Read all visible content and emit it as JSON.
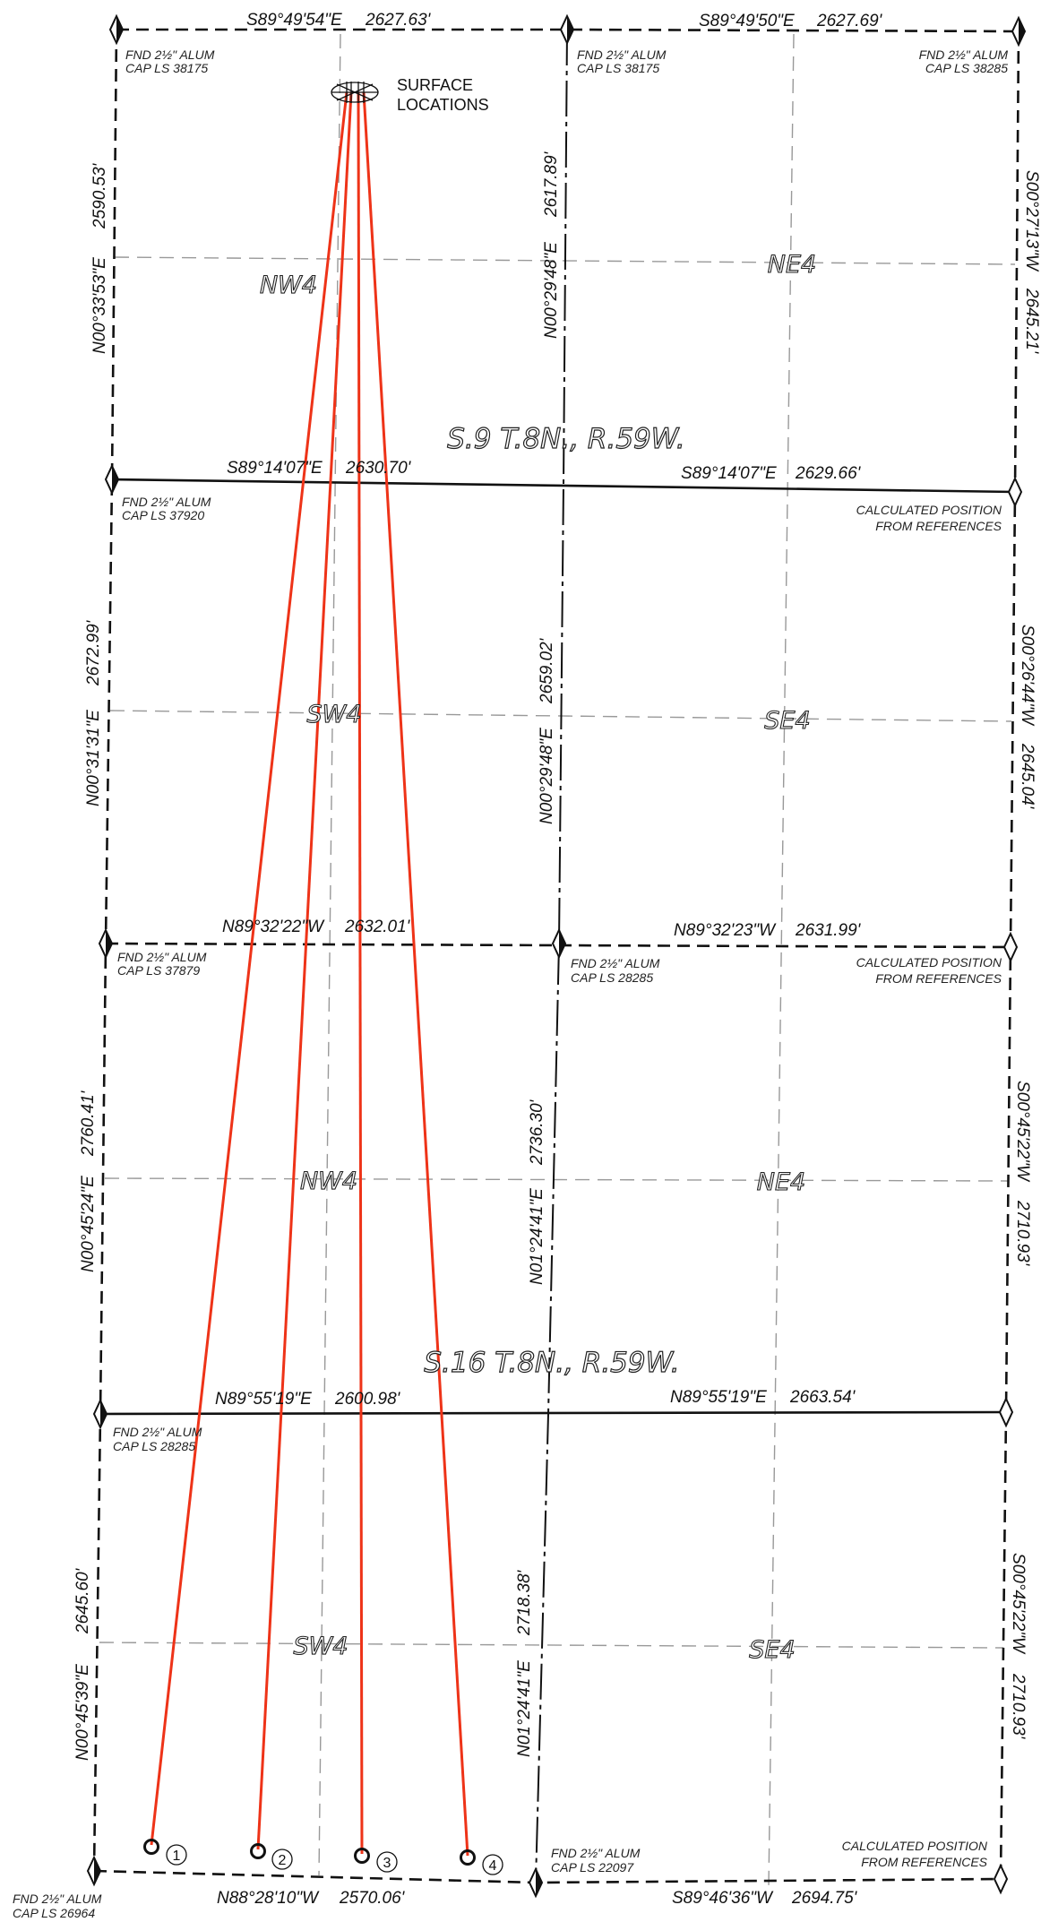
{
  "sections": [
    {
      "id": "s9",
      "label": "S.9 T.8N., R.59W."
    },
    {
      "id": "s16",
      "label": "S.16 T.8N., R.59W."
    }
  ],
  "quarters": {
    "s9_nw": "NW4",
    "s9_ne": "NE4",
    "s9_sw": "SW4",
    "s9_se": "SE4",
    "s16_nw": "NW4",
    "s16_ne": "NE4",
    "s16_sw": "SW4",
    "s16_se": "SE4"
  },
  "surface_locations": [
    "SURFACE",
    "LOCATIONS"
  ],
  "bearings": {
    "top_left": {
      "bearing": "S89°49'54\"E",
      "distance": "2627.63'"
    },
    "top_right": {
      "bearing": "S89°49'50\"E",
      "distance": "2627.69'"
    },
    "s9_mid_left": {
      "bearing": "S89°14'07\"E",
      "distance": "2630.70'"
    },
    "s9_mid_right": {
      "bearing": "S89°14'07\"E",
      "distance": "2629.66'"
    },
    "line_mid_left": {
      "bearing": "N89°32'22\"W",
      "distance": "2632.01'"
    },
    "line_mid_right": {
      "bearing": "N89°32'23\"W",
      "distance": "2631.99'"
    },
    "s16_mid_left": {
      "bearing": "N89°55'19\"E",
      "distance": "2600.98'"
    },
    "s16_mid_right": {
      "bearing": "N89°55'19\"E",
      "distance": "2663.54'"
    },
    "bottom_left": {
      "bearing": "N88°28'10\"W",
      "distance": "2570.06'"
    },
    "bottom_right": {
      "bearing": "S89°46'36\"W",
      "distance": "2694.75'"
    },
    "west_1": {
      "bearing": "N00°33'53\"E",
      "distance": "2590.53'"
    },
    "west_2": {
      "bearing": "N00°31'31\"E",
      "distance": "2672.99'"
    },
    "west_3": {
      "bearing": "N00°45'24\"E",
      "distance": "2760.41'"
    },
    "west_4": {
      "bearing": "N00°45'39\"E",
      "distance": "2645.60'"
    },
    "center_1": {
      "bearing": "N00°29'48\"E",
      "distance": "2617.89'"
    },
    "center_2": {
      "bearing": "N00°29'48\"E",
      "distance": "2659.02'"
    },
    "center_3": {
      "bearing": "N01°24'41\"E",
      "distance": "2736.30'"
    },
    "center_4": {
      "bearing": "N01°24'41\"E",
      "distance": "2718.38'"
    },
    "east_1": {
      "bearing": "S00°27'13\"W",
      "distance": "2645.21'"
    },
    "east_2": {
      "bearing": "S00°26'44\"W",
      "distance": "2645.04'"
    },
    "east_3": {
      "bearing": "S00°45'22\"W",
      "distance": "2710.93'"
    },
    "east_4": {
      "bearing": "S00°45'22\"W",
      "distance": "2710.93'"
    }
  },
  "monuments": {
    "nw_corner": [
      "FND 2½\" ALUM",
      "CAP LS 38175"
    ],
    "n_quarter": [
      "FND 2½\" ALUM",
      "CAP LS 38175"
    ],
    "ne_corner": [
      "FND 2½\" ALUM",
      "CAP LS 38285"
    ],
    "w_quarter_s9": [
      "FND 2½\" ALUM",
      "CAP LS 37920"
    ],
    "e_quarter_s9": [
      "CALCULATED POSITION",
      "FROM REFERENCES"
    ],
    "w_line": [
      "FND 2½\" ALUM",
      "CAP LS 37879"
    ],
    "c_line": [
      "FND 2½\" ALUM",
      "CAP LS 28285"
    ],
    "e_line": [
      "CALCULATED POSITION",
      "FROM REFERENCES"
    ],
    "w_quarter_s16": [
      "FND 2½\" ALUM",
      "CAP LS 28285"
    ],
    "sw_corner": [
      "FND 2½\" ALUM",
      "CAP LS 26964"
    ],
    "s_quarter": [
      "FND 2½\" ALUM",
      "CAP LS 22097"
    ],
    "se_corner": [
      "CALCULATED POSITION",
      "FROM REFERENCES"
    ]
  },
  "wells": [
    {
      "number": "1"
    },
    {
      "number": "2"
    },
    {
      "number": "3"
    },
    {
      "number": "4"
    }
  ],
  "colors": {
    "well_path": "#ee3318",
    "boundary": "#111111",
    "quarter_line": "#999999"
  }
}
